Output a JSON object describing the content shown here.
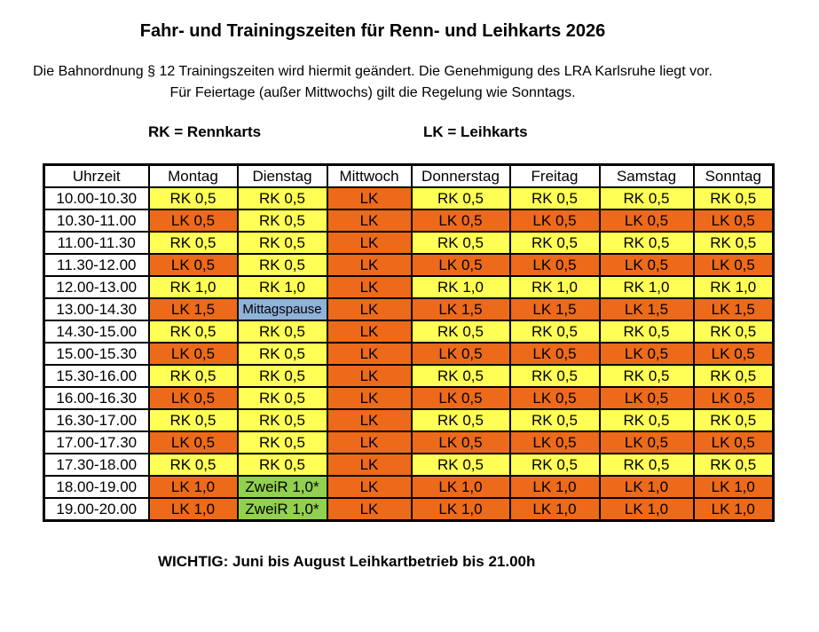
{
  "header": {
    "title": "Fahr- und Trainingszeiten für Renn- und Leihkarts 2026",
    "note_line1": "Die Bahnordnung § 12 Trainingszeiten wird hiermit geändert. Die Genehmigung des LRA Karlsruhe liegt vor.",
    "note_line2": "Für Feiertage (außer Mittwochs) gilt die Regelung wie Sonntags."
  },
  "legend": {
    "rk": "RK = Rennkarts",
    "lk": "LK = Leihkarts"
  },
  "colors": {
    "yellow": "#FFFF55",
    "orange": "#EC6A1A",
    "blue": "#8FB2D9",
    "green": "#92D050",
    "white": "#FFFFFF",
    "border": "#000000"
  },
  "table": {
    "columns": [
      "Uhrzeit",
      "Montag",
      "Dienstag",
      "Mittwoch",
      "Donnerstag",
      "Freitag",
      "Samstag",
      "Sonntag"
    ],
    "rows": [
      {
        "time": "10.00-10.30",
        "cells": [
          {
            "text": "RK 0,5",
            "color": "yellow"
          },
          {
            "text": "RK 0,5",
            "color": "yellow"
          },
          {
            "text": "LK",
            "color": "orange"
          },
          {
            "text": "RK 0,5",
            "color": "yellow"
          },
          {
            "text": "RK 0,5",
            "color": "yellow"
          },
          {
            "text": "RK 0,5",
            "color": "yellow"
          },
          {
            "text": "RK 0,5",
            "color": "yellow"
          }
        ]
      },
      {
        "time": "10.30-11.00",
        "cells": [
          {
            "text": "LK 0,5",
            "color": "orange"
          },
          {
            "text": "RK 0,5",
            "color": "yellow"
          },
          {
            "text": "LK",
            "color": "orange"
          },
          {
            "text": "LK 0,5",
            "color": "orange"
          },
          {
            "text": "LK 0,5",
            "color": "orange"
          },
          {
            "text": "LK 0,5",
            "color": "orange"
          },
          {
            "text": "LK 0,5",
            "color": "orange"
          }
        ]
      },
      {
        "time": "11.00-11.30",
        "cells": [
          {
            "text": "RK 0,5",
            "color": "yellow"
          },
          {
            "text": "RK 0,5",
            "color": "yellow"
          },
          {
            "text": "LK",
            "color": "orange"
          },
          {
            "text": "RK 0,5",
            "color": "yellow"
          },
          {
            "text": "RK 0,5",
            "color": "yellow"
          },
          {
            "text": "RK 0,5",
            "color": "yellow"
          },
          {
            "text": "RK 0,5",
            "color": "yellow"
          }
        ]
      },
      {
        "time": "11.30-12.00",
        "cells": [
          {
            "text": "LK 0,5",
            "color": "orange"
          },
          {
            "text": "RK 0,5",
            "color": "yellow"
          },
          {
            "text": "LK",
            "color": "orange"
          },
          {
            "text": "LK 0,5",
            "color": "orange"
          },
          {
            "text": "LK 0,5",
            "color": "orange"
          },
          {
            "text": "LK 0,5",
            "color": "orange"
          },
          {
            "text": "LK 0,5",
            "color": "orange"
          }
        ]
      },
      {
        "time": "12.00-13.00",
        "cells": [
          {
            "text": "RK 1,0",
            "color": "yellow"
          },
          {
            "text": "RK 1,0",
            "color": "yellow"
          },
          {
            "text": "LK",
            "color": "orange"
          },
          {
            "text": "RK 1,0",
            "color": "yellow"
          },
          {
            "text": "RK 1,0",
            "color": "yellow"
          },
          {
            "text": "RK 1,0",
            "color": "yellow"
          },
          {
            "text": "RK 1,0",
            "color": "yellow"
          }
        ]
      },
      {
        "time": "13.00-14.30",
        "cells": [
          {
            "text": "LK 1,5",
            "color": "orange"
          },
          {
            "text": "Mittagspause",
            "color": "blue",
            "small": true
          },
          {
            "text": "LK",
            "color": "orange"
          },
          {
            "text": "LK 1,5",
            "color": "orange"
          },
          {
            "text": "LK 1,5",
            "color": "orange"
          },
          {
            "text": "LK 1,5",
            "color": "orange"
          },
          {
            "text": "LK 1,5",
            "color": "orange"
          }
        ]
      },
      {
        "time": "14.30-15.00",
        "cells": [
          {
            "text": "RK 0,5",
            "color": "yellow"
          },
          {
            "text": "RK 0,5",
            "color": "yellow"
          },
          {
            "text": "LK",
            "color": "orange"
          },
          {
            "text": "RK 0,5",
            "color": "yellow"
          },
          {
            "text": "RK 0,5",
            "color": "yellow"
          },
          {
            "text": "RK 0,5",
            "color": "yellow"
          },
          {
            "text": "RK 0,5",
            "color": "yellow"
          }
        ]
      },
      {
        "time": "15.00-15.30",
        "cells": [
          {
            "text": "LK 0,5",
            "color": "orange"
          },
          {
            "text": "RK 0,5",
            "color": "yellow"
          },
          {
            "text": "LK",
            "color": "orange"
          },
          {
            "text": "LK 0,5",
            "color": "orange"
          },
          {
            "text": "LK 0,5",
            "color": "orange"
          },
          {
            "text": "LK 0,5",
            "color": "orange"
          },
          {
            "text": "LK 0,5",
            "color": "orange"
          }
        ]
      },
      {
        "time": "15.30-16.00",
        "cells": [
          {
            "text": "RK 0,5",
            "color": "yellow"
          },
          {
            "text": "RK 0,5",
            "color": "yellow"
          },
          {
            "text": "LK",
            "color": "orange"
          },
          {
            "text": "RK 0,5",
            "color": "yellow"
          },
          {
            "text": "RK 0,5",
            "color": "yellow"
          },
          {
            "text": "RK 0,5",
            "color": "yellow"
          },
          {
            "text": "RK 0,5",
            "color": "yellow"
          }
        ]
      },
      {
        "time": "16.00-16.30",
        "cells": [
          {
            "text": "LK 0,5",
            "color": "orange"
          },
          {
            "text": "RK 0,5",
            "color": "yellow"
          },
          {
            "text": "LK",
            "color": "orange"
          },
          {
            "text": "LK 0,5",
            "color": "orange"
          },
          {
            "text": "LK 0,5",
            "color": "orange"
          },
          {
            "text": "LK 0,5",
            "color": "orange"
          },
          {
            "text": "LK 0,5",
            "color": "orange"
          }
        ]
      },
      {
        "time": "16.30-17.00",
        "cells": [
          {
            "text": "RK 0,5",
            "color": "yellow"
          },
          {
            "text": "RK 0,5",
            "color": "yellow"
          },
          {
            "text": "LK",
            "color": "orange"
          },
          {
            "text": "RK 0,5",
            "color": "yellow"
          },
          {
            "text": "RK 0,5",
            "color": "yellow"
          },
          {
            "text": "RK 0,5",
            "color": "yellow"
          },
          {
            "text": "RK 0,5",
            "color": "yellow"
          }
        ]
      },
      {
        "time": "17.00-17.30",
        "cells": [
          {
            "text": "LK 0,5",
            "color": "orange"
          },
          {
            "text": "RK 0,5",
            "color": "yellow"
          },
          {
            "text": "LK",
            "color": "orange"
          },
          {
            "text": "LK 0,5",
            "color": "orange"
          },
          {
            "text": "LK 0,5",
            "color": "orange"
          },
          {
            "text": "LK 0,5",
            "color": "orange"
          },
          {
            "text": "LK 0,5",
            "color": "orange"
          }
        ]
      },
      {
        "time": "17.30-18.00",
        "cells": [
          {
            "text": "RK 0,5",
            "color": "yellow"
          },
          {
            "text": "RK 0,5",
            "color": "yellow"
          },
          {
            "text": "LK",
            "color": "orange"
          },
          {
            "text": "RK 0,5",
            "color": "yellow"
          },
          {
            "text": "RK 0,5",
            "color": "yellow"
          },
          {
            "text": "RK 0,5",
            "color": "yellow"
          },
          {
            "text": "RK 0,5",
            "color": "yellow"
          }
        ]
      },
      {
        "time": "18.00-19.00",
        "cells": [
          {
            "text": "LK 1,0",
            "color": "orange"
          },
          {
            "text": "ZweiR 1,0*",
            "color": "green"
          },
          {
            "text": "LK",
            "color": "orange"
          },
          {
            "text": "LK 1,0",
            "color": "orange"
          },
          {
            "text": "LK 1,0",
            "color": "orange"
          },
          {
            "text": "LK 1,0",
            "color": "orange"
          },
          {
            "text": "LK 1,0",
            "color": "orange"
          }
        ]
      },
      {
        "time": "19.00-20.00",
        "cells": [
          {
            "text": "LK 1,0",
            "color": "orange"
          },
          {
            "text": "ZweiR 1,0*",
            "color": "green"
          },
          {
            "text": "LK",
            "color": "orange"
          },
          {
            "text": "LK 1,0",
            "color": "orange"
          },
          {
            "text": "LK 1,0",
            "color": "orange"
          },
          {
            "text": "LK 1,0",
            "color": "orange"
          },
          {
            "text": "LK 1,0",
            "color": "orange"
          }
        ]
      }
    ]
  },
  "footer": {
    "note": "WICHTIG: Juni bis August Leihkartbetrieb bis 21.00h"
  }
}
